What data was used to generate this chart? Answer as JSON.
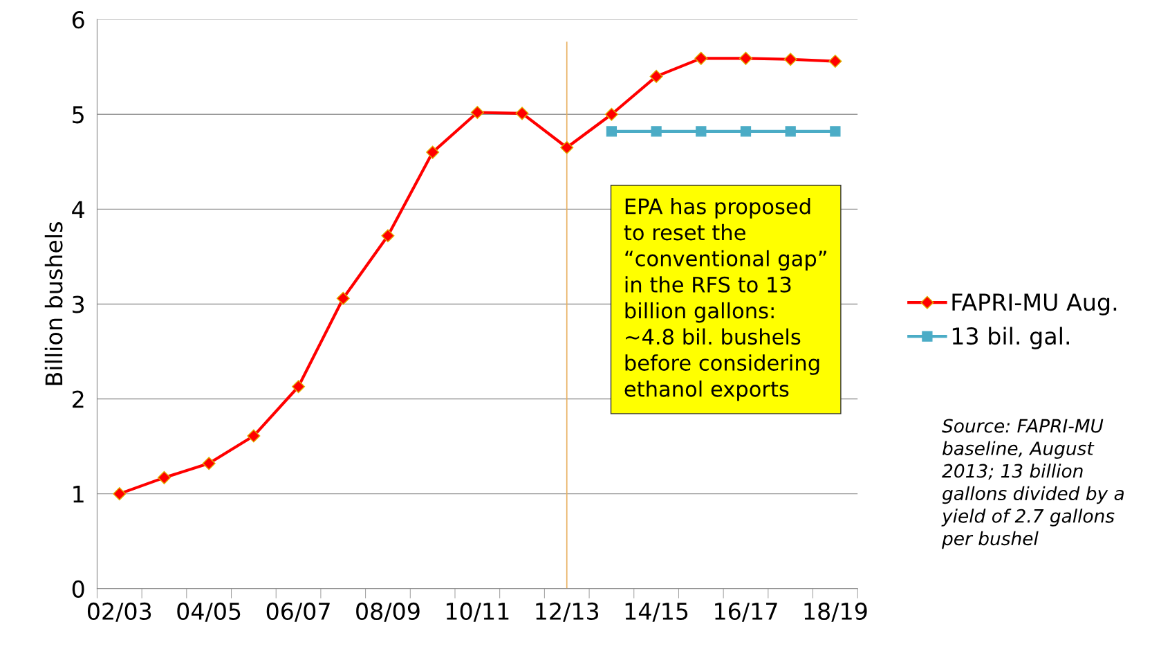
{
  "chart_data": {
    "type": "line",
    "ylabel": "Billion bushels",
    "categories": [
      "02/03",
      null,
      "04/05",
      null,
      "06/07",
      null,
      "08/09",
      null,
      "10/11",
      null,
      "12/13",
      null,
      "14/15",
      null,
      "16/17",
      null,
      "18/19"
    ],
    "series": [
      {
        "name": "FAPRI-MU Aug.",
        "color": "#ff0000",
        "marker": "diamond",
        "values": [
          1.0,
          1.17,
          1.32,
          1.61,
          2.13,
          3.06,
          3.72,
          4.6,
          5.02,
          5.01,
          4.65,
          5.0,
          5.4,
          5.59,
          5.59,
          5.58,
          5.56
        ]
      },
      {
        "name": "13 bil. gal.",
        "color": "#4bacc6",
        "marker": "square",
        "values": [
          null,
          null,
          null,
          null,
          null,
          null,
          null,
          null,
          null,
          null,
          null,
          4.82,
          4.82,
          4.82,
          4.82,
          4.82,
          4.82
        ]
      }
    ],
    "ylim": [
      0,
      6
    ],
    "yticks": [
      0,
      1,
      2,
      3,
      4,
      5,
      6
    ],
    "grid": "y",
    "legend": "right",
    "line_style": "solid",
    "ref_lines": [
      {
        "axis": "x",
        "value": "12/13",
        "color": "#e8b060"
      }
    ],
    "annotations": [
      "EPA has proposed to reset the “conventional gap” in the RFS to 13 billion gallons: ~4.8 bil. bushels before considering ethanol exports",
      "Source: FAPRI-MU baseline, August 2013; 13 billion gallons divided by a yield of 2.7 gallons per bushel"
    ]
  }
}
